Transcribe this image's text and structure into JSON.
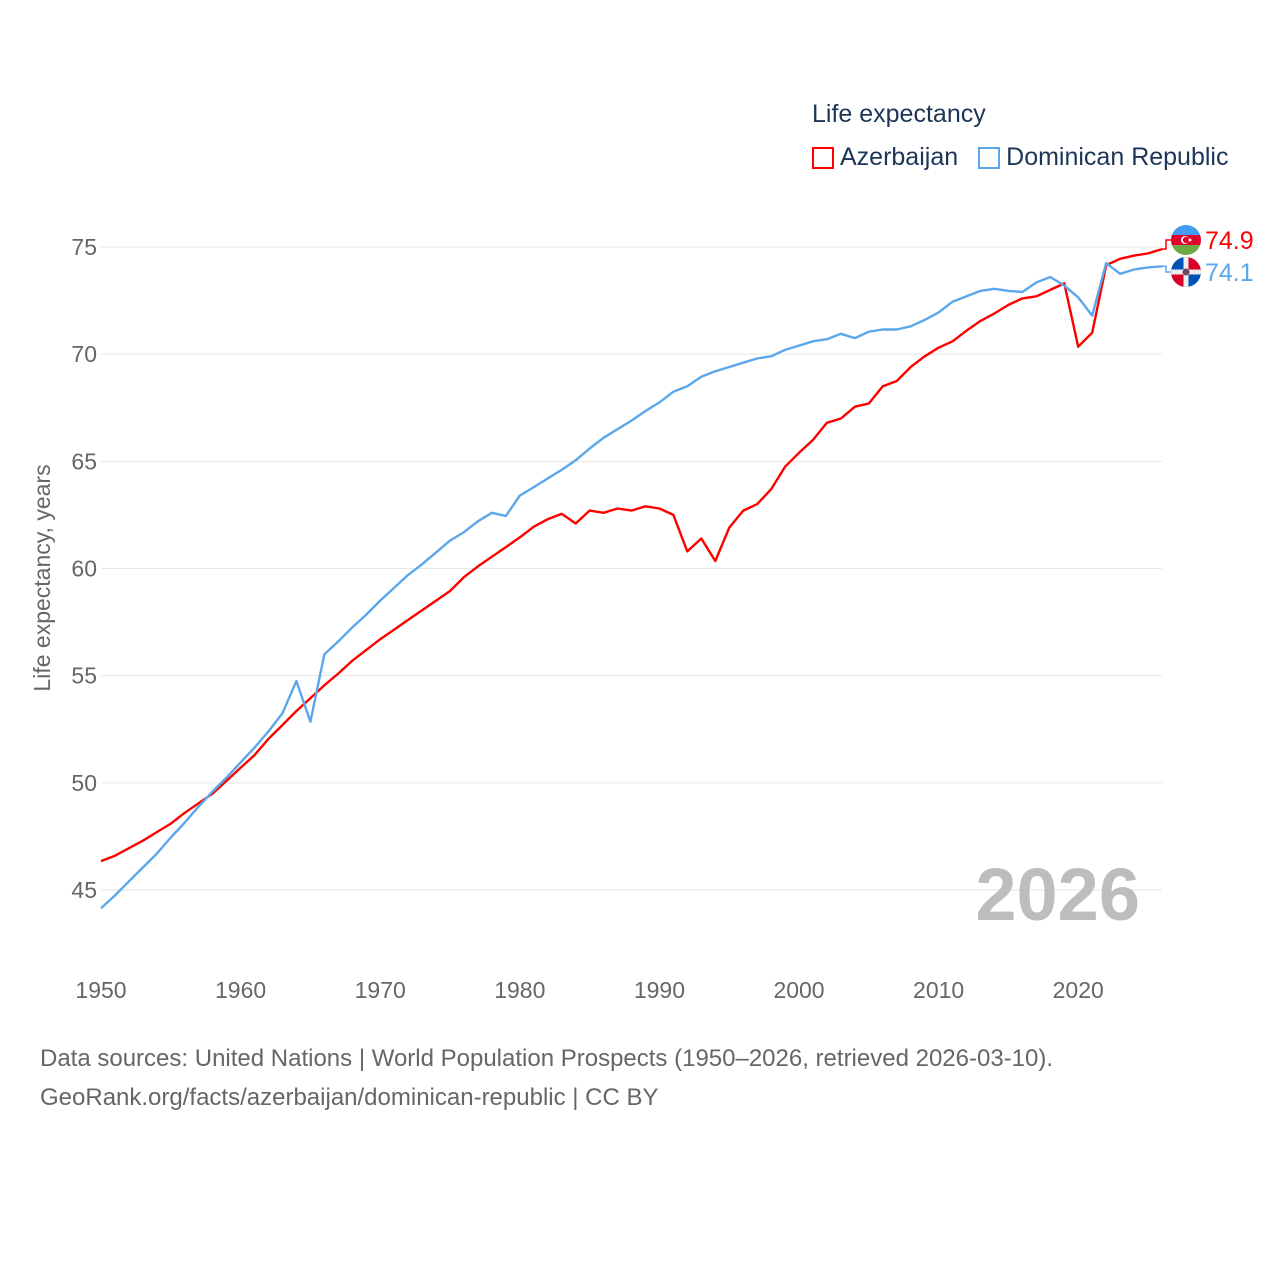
{
  "chart_data": {
    "type": "line",
    "title": "Life expectancy",
    "ylabel": "Life expectancy, years",
    "xlabel": "",
    "xlim": [
      1950,
      2026
    ],
    "ylim": [
      45,
      75
    ],
    "x_ticks": [
      1950,
      1960,
      1970,
      1980,
      1990,
      2000,
      2010,
      2020
    ],
    "y_ticks": [
      45,
      50,
      55,
      60,
      65,
      70,
      75
    ],
    "grid": true,
    "legend_position": "top-right",
    "year_watermark": "2026",
    "x": [
      1950,
      1951,
      1952,
      1953,
      1954,
      1955,
      1956,
      1957,
      1958,
      1959,
      1960,
      1961,
      1962,
      1963,
      1964,
      1965,
      1966,
      1967,
      1968,
      1969,
      1970,
      1971,
      1972,
      1973,
      1974,
      1975,
      1976,
      1977,
      1978,
      1979,
      1980,
      1981,
      1982,
      1983,
      1984,
      1985,
      1986,
      1987,
      1988,
      1989,
      1990,
      1991,
      1992,
      1993,
      1994,
      1995,
      1996,
      1997,
      1998,
      1999,
      2000,
      2001,
      2002,
      2003,
      2004,
      2005,
      2006,
      2007,
      2008,
      2009,
      2010,
      2011,
      2012,
      2013,
      2014,
      2015,
      2016,
      2017,
      2018,
      2019,
      2020,
      2021,
      2022,
      2023,
      2024,
      2025,
      2026
    ],
    "series": [
      {
        "name": "Azerbaijan",
        "color": "#ff0000",
        "end_label": "74.9",
        "values": [
          46.35,
          46.6,
          46.95,
          47.3,
          47.7,
          48.1,
          48.6,
          49.05,
          49.5,
          50.1,
          50.7,
          51.3,
          52.05,
          52.7,
          53.35,
          53.95,
          54.55,
          55.1,
          55.7,
          56.2,
          56.7,
          57.15,
          57.6,
          58.05,
          58.5,
          58.95,
          59.6,
          60.1,
          60.55,
          61.0,
          61.45,
          61.95,
          62.3,
          62.55,
          62.1,
          62.7,
          62.6,
          62.8,
          62.7,
          62.9,
          62.8,
          62.5,
          60.8,
          61.4,
          60.35,
          61.9,
          62.7,
          63.0,
          63.7,
          64.75,
          65.4,
          66.0,
          66.8,
          67.0,
          67.55,
          67.7,
          68.5,
          68.75,
          69.4,
          69.9,
          70.3,
          70.6,
          71.1,
          71.55,
          71.9,
          72.3,
          72.6,
          72.7,
          73.0,
          73.3,
          70.35,
          71.0,
          74.15,
          74.45,
          74.6,
          74.7,
          74.9
        ]
      },
      {
        "name": "Dominican Republic",
        "color": "#5ba7ec",
        "end_label": "74.1",
        "values": [
          44.15,
          44.75,
          45.4,
          46.05,
          46.7,
          47.45,
          48.15,
          48.9,
          49.6,
          50.25,
          50.95,
          51.65,
          52.4,
          53.25,
          54.75,
          52.85,
          56.0,
          56.6,
          57.25,
          57.85,
          58.5,
          59.1,
          59.7,
          60.2,
          60.75,
          61.3,
          61.7,
          62.2,
          62.6,
          62.45,
          63.4,
          63.8,
          64.2,
          64.6,
          65.05,
          65.6,
          66.1,
          66.5,
          66.9,
          67.35,
          67.75,
          68.25,
          68.5,
          68.95,
          69.2,
          69.4,
          69.6,
          69.8,
          69.9,
          70.2,
          70.4,
          70.6,
          70.7,
          70.95,
          70.75,
          71.05,
          71.15,
          71.15,
          71.3,
          71.6,
          71.95,
          72.45,
          72.7,
          72.95,
          73.05,
          72.95,
          72.9,
          73.35,
          73.6,
          73.2,
          72.65,
          71.8,
          74.25,
          73.75,
          73.95,
          74.05,
          74.1
        ]
      }
    ]
  },
  "footer": {
    "line1": "Data sources: United Nations | World Population Prospects (1950–2026, retrieved 2026-03-10).",
    "line2": "GeoRank.org/facts/azerbaijan/dominican-republic | CC BY"
  }
}
